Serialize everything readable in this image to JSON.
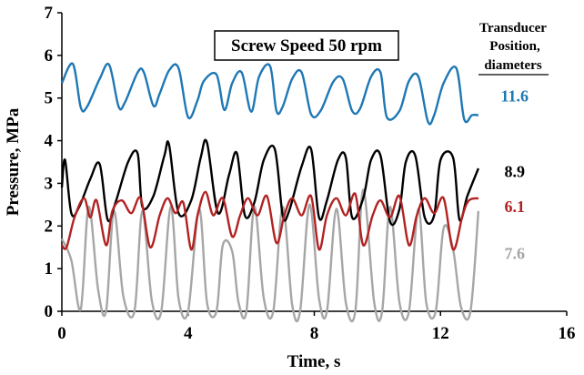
{
  "chart_data": {
    "type": "line",
    "title": "Screw Speed 50 rpm",
    "xlabel": "Time, s",
    "ylabel": "Pressure, MPa",
    "xlim": [
      0,
      16
    ],
    "ylim": [
      0,
      7
    ],
    "xticks": [
      "0",
      "4",
      "8",
      "12",
      "16"
    ],
    "yticks": [
      "0",
      "1",
      "2",
      "3",
      "4",
      "5",
      "6",
      "7"
    ],
    "grid": false,
    "legend_title": [
      "Transducer",
      "Position,",
      "diameters"
    ],
    "series": [
      {
        "name": "11.6",
        "color": "#1f77b4",
        "x": [
          0.0,
          0.35,
          0.6,
          0.8,
          1.2,
          1.5,
          1.8,
          2.0,
          2.4,
          2.6,
          2.9,
          3.1,
          3.4,
          3.7,
          4.0,
          4.3,
          4.5,
          4.9,
          5.15,
          5.4,
          5.7,
          6.0,
          6.25,
          6.6,
          6.8,
          7.0,
          7.3,
          7.6,
          7.9,
          8.2,
          8.6,
          8.9,
          9.2,
          9.45,
          9.8,
          10.1,
          10.3,
          10.7,
          11.0,
          11.3,
          11.6,
          11.8,
          12.1,
          12.5,
          12.75,
          13.0,
          13.2
        ],
        "values": [
          5.35,
          5.8,
          4.78,
          4.8,
          5.45,
          5.78,
          4.8,
          4.9,
          5.6,
          5.6,
          4.82,
          5.1,
          5.65,
          5.7,
          4.55,
          4.95,
          5.4,
          5.55,
          4.72,
          5.35,
          5.6,
          4.68,
          5.5,
          5.75,
          4.7,
          4.8,
          5.45,
          5.6,
          4.62,
          4.7,
          5.38,
          5.45,
          4.7,
          4.75,
          5.5,
          5.6,
          4.55,
          4.7,
          5.4,
          5.5,
          4.45,
          4.6,
          5.35,
          5.7,
          4.5,
          4.6,
          4.6
        ]
      },
      {
        "name": "8.9",
        "color": "#000000",
        "x": [
          0.0,
          0.1,
          0.3,
          0.55,
          0.9,
          1.2,
          1.45,
          1.7,
          2.1,
          2.4,
          2.55,
          2.9,
          3.25,
          3.4,
          3.7,
          4.1,
          4.4,
          4.6,
          4.95,
          5.3,
          5.55,
          5.8,
          6.1,
          6.4,
          6.75,
          7.0,
          7.2,
          7.6,
          7.9,
          8.15,
          8.4,
          8.75,
          9.0,
          9.2,
          9.55,
          9.8,
          10.1,
          10.4,
          10.7,
          10.9,
          11.2,
          11.5,
          11.8,
          12.0,
          12.4,
          12.6,
          12.85,
          13.2
        ],
        "values": [
          2.9,
          3.55,
          2.3,
          2.45,
          3.1,
          3.45,
          2.15,
          2.55,
          3.5,
          3.7,
          2.45,
          2.7,
          3.65,
          3.9,
          2.3,
          2.6,
          3.6,
          3.95,
          2.3,
          3.2,
          3.7,
          2.25,
          2.55,
          3.55,
          3.8,
          2.25,
          2.35,
          3.4,
          3.8,
          2.2,
          2.6,
          3.55,
          3.6,
          2.2,
          2.65,
          3.55,
          3.65,
          2.1,
          2.4,
          3.5,
          3.65,
          2.2,
          2.25,
          3.55,
          3.6,
          2.15,
          2.7,
          3.35
        ]
      },
      {
        "name": "6.1",
        "color": "#b22222",
        "x": [
          0.0,
          0.15,
          0.4,
          0.7,
          0.9,
          1.1,
          1.4,
          1.6,
          1.9,
          2.2,
          2.5,
          2.8,
          3.1,
          3.35,
          3.6,
          3.85,
          4.1,
          4.3,
          4.55,
          4.8,
          5.1,
          5.4,
          5.65,
          5.9,
          6.2,
          6.5,
          6.8,
          7.05,
          7.3,
          7.6,
          7.9,
          8.15,
          8.4,
          8.7,
          9.0,
          9.3,
          9.55,
          9.85,
          10.1,
          10.4,
          10.7,
          11.0,
          11.25,
          11.5,
          11.8,
          12.1,
          12.4,
          12.7,
          12.9,
          13.2
        ],
        "values": [
          1.55,
          1.5,
          2.2,
          2.65,
          2.2,
          2.6,
          1.55,
          2.35,
          2.6,
          2.3,
          2.65,
          1.5,
          2.25,
          2.65,
          2.3,
          2.55,
          1.45,
          2.25,
          2.8,
          2.25,
          2.65,
          1.75,
          2.25,
          2.65,
          2.25,
          2.7,
          1.6,
          2.25,
          2.65,
          2.25,
          2.7,
          1.45,
          2.25,
          2.65,
          2.25,
          2.75,
          1.55,
          2.25,
          2.6,
          2.2,
          2.7,
          1.55,
          2.25,
          2.65,
          2.3,
          2.65,
          1.45,
          2.25,
          2.6,
          2.65
        ]
      },
      {
        "name": "7.6",
        "color": "#a6a6a6",
        "x": [
          0.0,
          0.3,
          0.6,
          0.85,
          1.15,
          1.4,
          1.65,
          1.95,
          2.3,
          2.55,
          2.85,
          3.15,
          3.45,
          3.7,
          4.0,
          4.35,
          4.6,
          4.9,
          5.1,
          5.4,
          5.6,
          5.85,
          6.1,
          6.4,
          6.7,
          7.0,
          7.3,
          7.55,
          7.85,
          8.15,
          8.4,
          8.7,
          9.0,
          9.3,
          9.55,
          9.9,
          10.15,
          10.4,
          10.7,
          11.0,
          11.3,
          11.55,
          11.85,
          12.1,
          12.4,
          12.65,
          12.95,
          13.2
        ],
        "values": [
          1.7,
          1.2,
          0.05,
          2.45,
          0.5,
          0.0,
          2.35,
          0.35,
          0.0,
          2.35,
          0.25,
          0.0,
          2.45,
          0.3,
          0.0,
          2.4,
          0.2,
          0.0,
          1.55,
          1.4,
          0.2,
          0.0,
          2.45,
          0.3,
          0.0,
          2.45,
          0.15,
          0.0,
          2.5,
          0.3,
          0.0,
          2.4,
          0.2,
          0.0,
          2.85,
          0.2,
          0.0,
          2.45,
          0.2,
          0.0,
          2.4,
          0.2,
          0.0,
          1.95,
          1.45,
          0.1,
          0.0,
          2.35
        ]
      }
    ],
    "annotations": [
      {
        "text": "11.6",
        "x": 14.35,
        "y": 5.05,
        "color": "#1f77b4"
      },
      {
        "text": "8.9",
        "x": 14.35,
        "y": 3.28,
        "color": "#000000"
      },
      {
        "text": "6.1",
        "x": 14.35,
        "y": 2.45,
        "color": "#b22222"
      },
      {
        "text": "7.6",
        "x": 14.35,
        "y": 1.35,
        "color": "#a6a6a6"
      }
    ]
  }
}
